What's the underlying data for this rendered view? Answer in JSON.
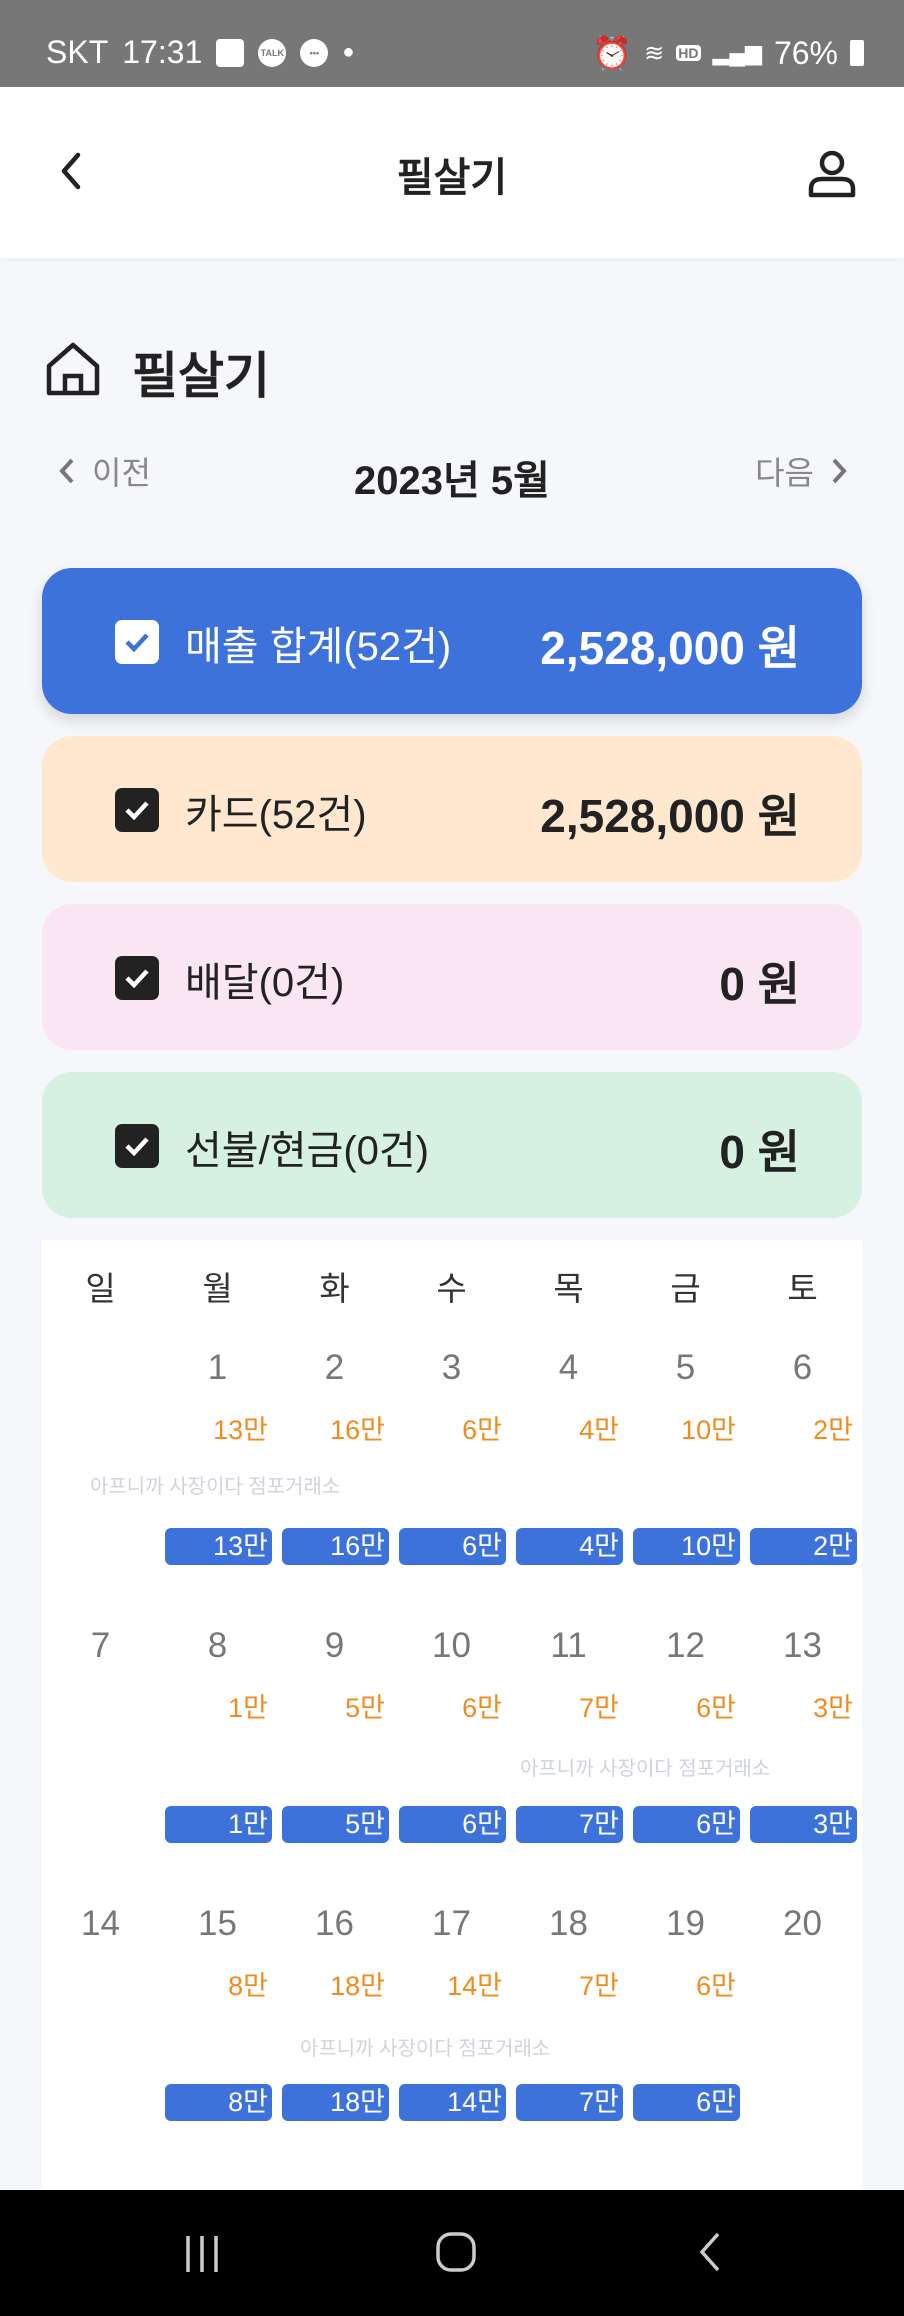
{
  "status": {
    "carrier": "SKT",
    "time": "17:31",
    "battery": "76%",
    "icons": [
      "gallery-icon",
      "kakaotalk-icon",
      "chat-icon",
      "dot-icon",
      "alarm-icon",
      "wifi-icon",
      "hd-voice-icon",
      "signal-icon",
      "battery-icon"
    ],
    "talk": "TALK",
    "hd": "HD"
  },
  "header": {
    "title": "필살기"
  },
  "page": {
    "title": "필살기",
    "prev": "이전",
    "next": "다음",
    "month": "2023년 5월"
  },
  "cards": [
    {
      "label": "매출 합계(52건)",
      "amount": "2,528,000 원",
      "color": "#3d72db"
    },
    {
      "label": "카드(52건)",
      "amount": "2,528,000 원",
      "color": "#ffe8cf"
    },
    {
      "label": "배달(0건)",
      "amount": "0 원",
      "color": "#fae6f2"
    },
    {
      "label": "선불/현금(0건)",
      "amount": "0 원",
      "color": "#d6f0e2"
    }
  ],
  "watermark": "아프니까 사장이다 점포거래소",
  "calendar": {
    "weekdays": [
      "일",
      "월",
      "화",
      "수",
      "목",
      "금",
      "토"
    ],
    "weeks": [
      [
        {
          "day": "",
          "amt": ""
        },
        {
          "day": "1",
          "amt": "13만"
        },
        {
          "day": "2",
          "amt": "16만"
        },
        {
          "day": "3",
          "amt": "6만"
        },
        {
          "day": "4",
          "amt": "4만"
        },
        {
          "day": "5",
          "amt": "10만"
        },
        {
          "day": "6",
          "amt": "2만"
        }
      ],
      [
        {
          "day": "7",
          "amt": ""
        },
        {
          "day": "8",
          "amt": "1만"
        },
        {
          "day": "9",
          "amt": "5만"
        },
        {
          "day": "10",
          "amt": "6만"
        },
        {
          "day": "11",
          "amt": "7만"
        },
        {
          "day": "12",
          "amt": "6만"
        },
        {
          "day": "13",
          "amt": "3만"
        }
      ],
      [
        {
          "day": "14",
          "amt": ""
        },
        {
          "day": "15",
          "amt": "8만"
        },
        {
          "day": "16",
          "amt": "18만"
        },
        {
          "day": "17",
          "amt": "14만"
        },
        {
          "day": "18",
          "amt": "7만"
        },
        {
          "day": "19",
          "amt": "6만"
        },
        {
          "day": "20",
          "amt": ""
        }
      ]
    ]
  },
  "colors": {
    "accent": "#3d72db",
    "amount": "#f08c1e"
  }
}
